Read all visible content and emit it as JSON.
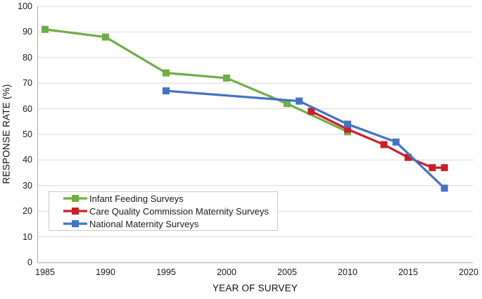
{
  "chart_data": {
    "type": "line",
    "title": "",
    "xlabel": "YEAR OF SURVEY",
    "ylabel": "RESPONSE RATE (%)",
    "xlim": [
      1985,
      2020
    ],
    "ylim": [
      0,
      100
    ],
    "x_ticks": [
      1985,
      1990,
      1995,
      2000,
      2005,
      2010,
      2015,
      2020
    ],
    "y_ticks": [
      0,
      10,
      20,
      30,
      40,
      50,
      60,
      70,
      80,
      90,
      100
    ],
    "grid": "horizontal",
    "legend_position": "inside-bottom-left",
    "marker": "square",
    "colors": {
      "grid": "#D9D9D9",
      "axis": "#A6A6A6",
      "green": "#70AD47",
      "red": "#C8202A",
      "blue": "#4472C4"
    },
    "series": [
      {
        "name": "Infant Feeding Surveys",
        "color": "#70AD47",
        "points": [
          [
            1985,
            91
          ],
          [
            1990,
            88
          ],
          [
            1995,
            74
          ],
          [
            2000,
            72
          ],
          [
            2005,
            62
          ],
          [
            2010,
            51
          ]
        ]
      },
      {
        "name": "Care Quality Commission Maternity Surveys",
        "color": "#C8202A",
        "points": [
          [
            2007,
            59
          ],
          [
            2010,
            52
          ],
          [
            2013,
            46
          ],
          [
            2015,
            41
          ],
          [
            2017,
            37
          ],
          [
            2018,
            37
          ]
        ]
      },
      {
        "name": "National Maternity Surveys",
        "color": "#4472C4",
        "points": [
          [
            1995,
            67
          ],
          [
            2006,
            63
          ],
          [
            2010,
            54
          ],
          [
            2014,
            47
          ],
          [
            2018,
            29
          ]
        ]
      }
    ]
  }
}
